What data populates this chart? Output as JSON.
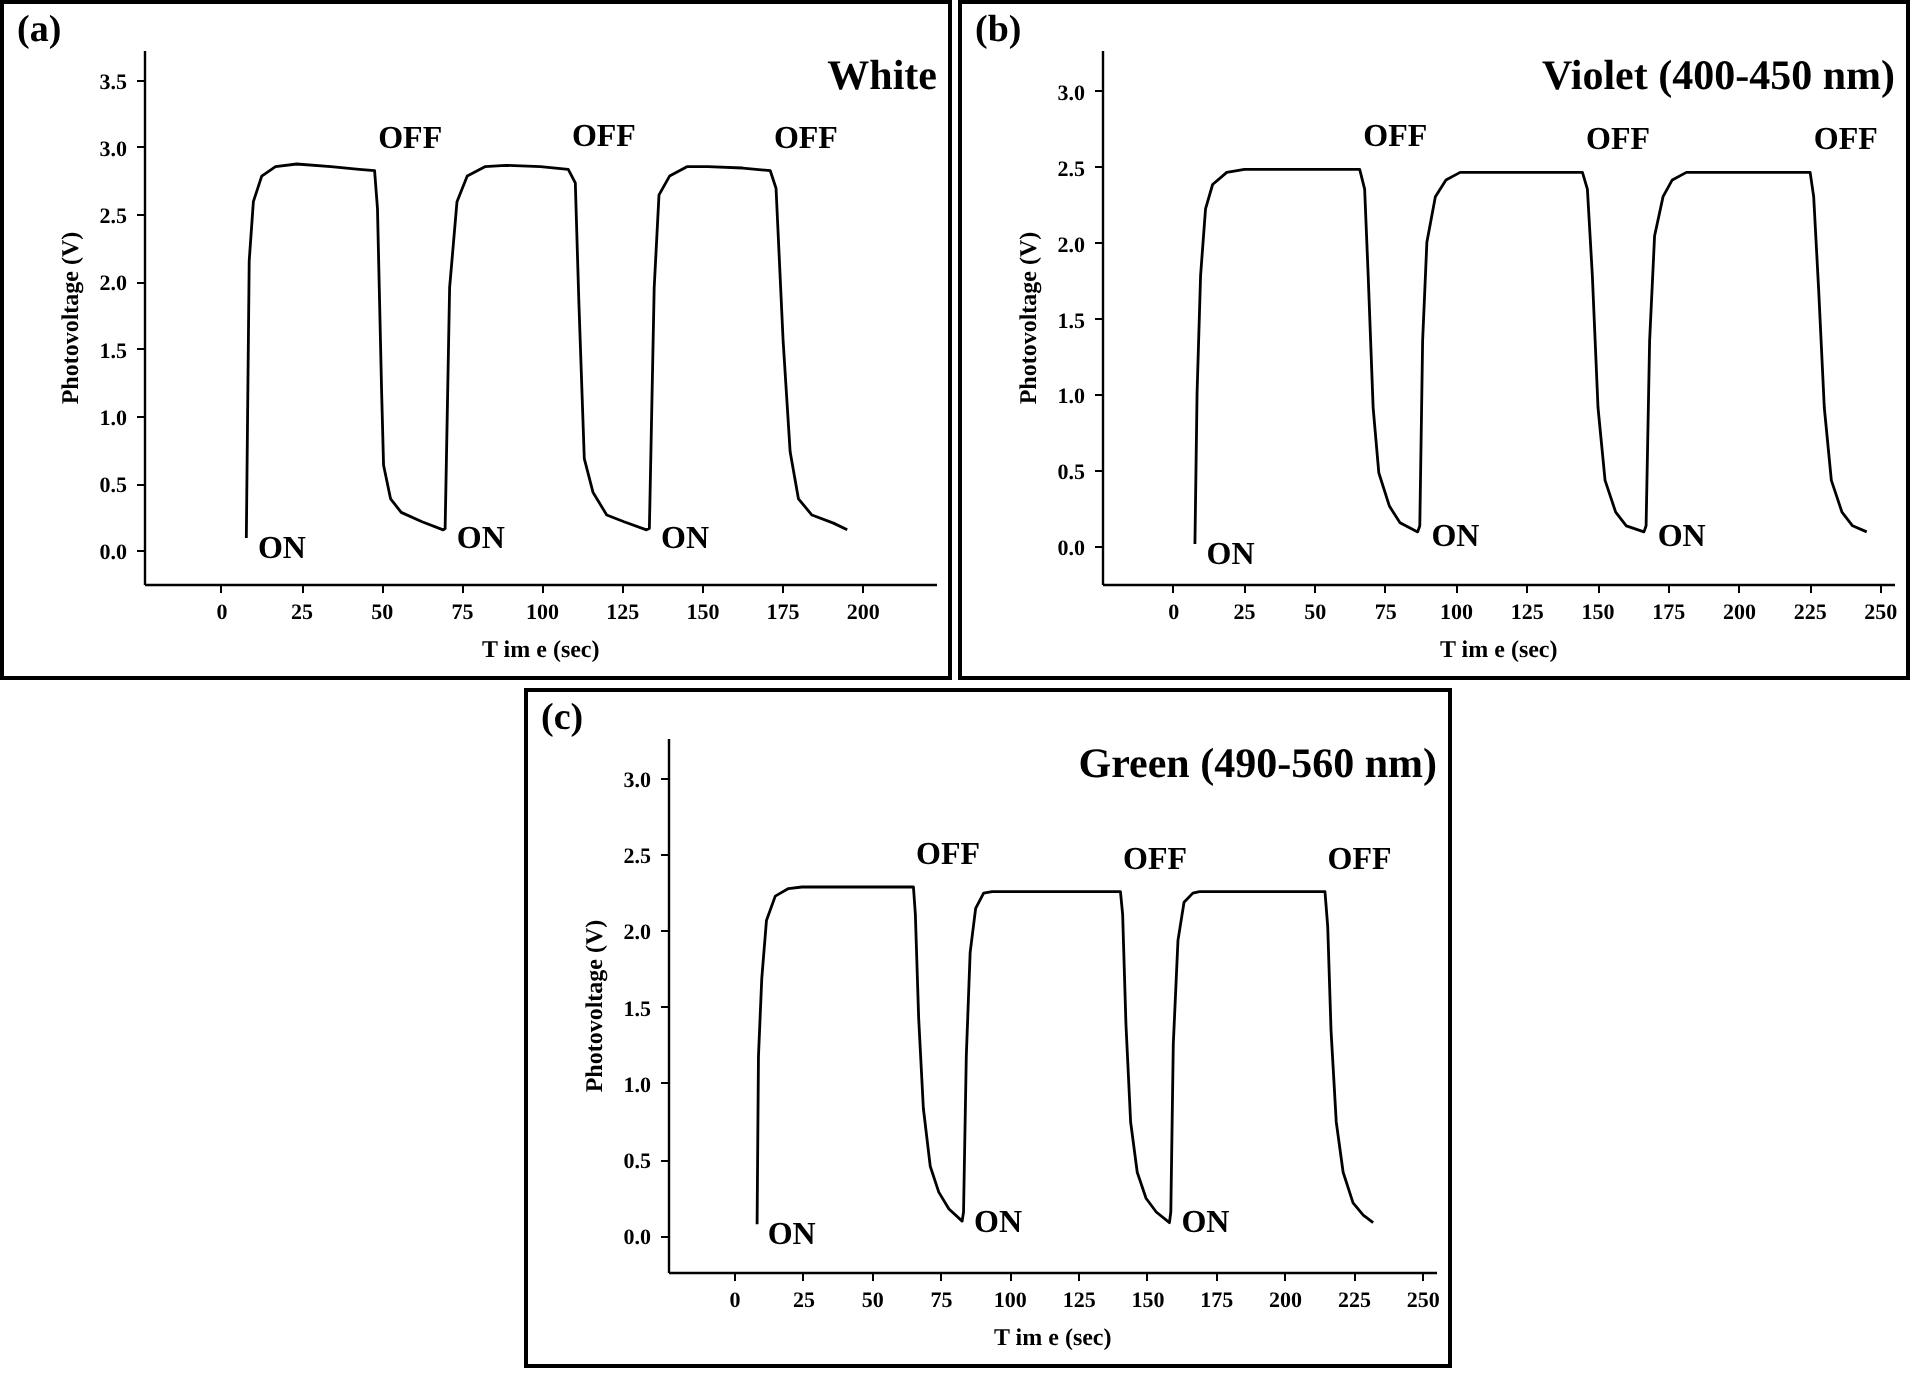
{
  "chart_data": [
    {
      "type": "line",
      "title": "White",
      "xlabel": "T im e (sec)",
      "ylabel": "Photovoltage (V)",
      "xlim": [
        -24,
        223
      ],
      "ylim": [
        -0.25,
        3.72
      ],
      "xticks": [
        0,
        25,
        50,
        75,
        100,
        125,
        150,
        175,
        200
      ],
      "yticks": [
        {
          "value": 0,
          "label": "0.0"
        },
        {
          "value": 0.5,
          "label": "0.5"
        },
        {
          "value": 1,
          "label": "1.0"
        },
        {
          "value": 1.5,
          "label": "1.5"
        },
        {
          "value": 2,
          "label": "2.0"
        },
        {
          "value": 2.5,
          "label": "2.5"
        },
        {
          "value": 3,
          "label": "3.0"
        },
        {
          "value": 3.5,
          "label": "3.5"
        }
      ],
      "series": [
        {
          "color": "#000000",
          "x": [
            7.6,
            8.5,
            9.8,
            12.4,
            16.7,
            23.3,
            34,
            42.8,
            47.6,
            48.5,
            49.8,
            50.4,
            52.6,
            55.9,
            62.4,
            69,
            69.6,
            71,
            73.3,
            76.5,
            82,
            88.5,
            99.3,
            108,
            110.2,
            111.3,
            113,
            115.7,
            120,
            125.4,
            132.4,
            133.3,
            134.8,
            136.3,
            139.6,
            145,
            151.5,
            162.4,
            171,
            172.8,
            175,
            177.2,
            179.8,
            184,
            190.7,
            195
          ],
          "values": [
            0.1,
            2.16,
            2.6,
            2.79,
            2.86,
            2.88,
            2.86,
            2.84,
            2.83,
            2.55,
            1.18,
            0.64,
            0.39,
            0.29,
            0.22,
            0.16,
            0.17,
            1.96,
            2.6,
            2.79,
            2.86,
            2.87,
            2.86,
            2.84,
            2.74,
            1.86,
            0.69,
            0.44,
            0.27,
            0.22,
            0.16,
            0.17,
            1.96,
            2.65,
            2.79,
            2.86,
            2.86,
            2.85,
            2.83,
            2.7,
            1.57,
            0.74,
            0.39,
            0.27,
            0.21,
            0.16
          ]
        }
      ],
      "annotations": [
        "(a)",
        "ON",
        "OFF",
        "ON",
        "OFF",
        "ON",
        "OFF"
      ]
    },
    {
      "type": "line",
      "title": "Violet (400-450 nm)",
      "xlabel": "T im e (sec)",
      "ylabel": "Photovoltage (V)",
      "xlim": [
        -25,
        255
      ],
      "ylim": [
        -0.25,
        3.27
      ],
      "xticks": [
        0,
        25,
        50,
        75,
        100,
        125,
        150,
        175,
        200,
        225,
        250
      ],
      "yticks": [
        {
          "value": 0,
          "label": "0.0"
        },
        {
          "value": 0.5,
          "label": "0.5"
        },
        {
          "value": 1,
          "label": "1.0"
        },
        {
          "value": 1.5,
          "label": "1.5"
        },
        {
          "value": 2,
          "label": "2.0"
        },
        {
          "value": 2.5,
          "label": "2.5"
        },
        {
          "value": 3,
          "label": "3.0"
        }
      ],
      "series": [
        {
          "color": "#000000",
          "x": [
            7.5,
            8.25,
            9.5,
            11.25,
            13.75,
            18.75,
            25,
            65.75,
            67.5,
            68.75,
            70.5,
            72.5,
            76.25,
            80,
            86.25,
            87,
            88,
            89.5,
            92.5,
            96.25,
            101.25,
            144.5,
            146.25,
            148,
            150,
            152.5,
            156.25,
            160,
            166.25,
            167,
            168.25,
            170,
            173,
            176.25,
            181.25,
            225,
            226.25,
            228,
            230,
            232.5,
            236.25,
            240,
            245
          ],
          "values": [
            0.02,
            1.01,
            1.79,
            2.23,
            2.39,
            2.47,
            2.49,
            2.49,
            2.36,
            1.79,
            0.92,
            0.49,
            0.27,
            0.16,
            0.1,
            0.14,
            1.36,
            2.01,
            2.31,
            2.42,
            2.47,
            2.47,
            2.36,
            1.79,
            0.92,
            0.44,
            0.23,
            0.14,
            0.1,
            0.14,
            1.36,
            2.05,
            2.31,
            2.42,
            2.47,
            2.47,
            2.31,
            1.7,
            0.92,
            0.44,
            0.23,
            0.14,
            0.1
          ]
        }
      ],
      "annotations": [
        "(b)",
        "ON",
        "OFF",
        "ON",
        "OFF",
        "ON",
        "OFF"
      ]
    },
    {
      "type": "line",
      "title": "Green (490-560 nm)",
      "xlabel": "T im e (sec)",
      "ylabel": "Photovoltage (V)",
      "xlim": [
        -24,
        255
      ],
      "ylim": [
        -0.24,
        3.26
      ],
      "xticks": [
        0,
        25,
        50,
        75,
        100,
        125,
        150,
        175,
        200,
        225,
        250
      ],
      "yticks": [
        {
          "value": 0,
          "label": "0.0"
        },
        {
          "value": 0.5,
          "label": "0.5"
        },
        {
          "value": 1,
          "label": "1.0"
        },
        {
          "value": 1.5,
          "label": "1.5"
        },
        {
          "value": 2,
          "label": "2.0"
        },
        {
          "value": 2.5,
          "label": "2.5"
        },
        {
          "value": 3,
          "label": "3.0"
        }
      ],
      "series": [
        {
          "color": "#000000",
          "x": [
            8,
            8.5,
            9.7,
            11.4,
            14.6,
            19.4,
            24.3,
            64.8,
            65.5,
            66.7,
            68.4,
            70.9,
            74,
            77.7,
            82.5,
            83,
            84,
            85.4,
            87.4,
            90.3,
            93.4,
            140,
            140.8,
            142,
            143.7,
            146.1,
            149.3,
            153,
            157.8,
            158.3,
            159.2,
            160.9,
            163.1,
            166.3,
            168.7,
            214.3,
            215.3,
            216.5,
            218.4,
            220.9,
            224.5,
            228.2,
            231.8
          ],
          "values": [
            0.08,
            1.18,
            1.69,
            2.07,
            2.23,
            2.28,
            2.29,
            2.29,
            2.11,
            1.43,
            0.84,
            0.46,
            0.29,
            0.18,
            0.1,
            0.16,
            1.18,
            1.86,
            2.15,
            2.25,
            2.26,
            2.26,
            2.11,
            1.39,
            0.75,
            0.42,
            0.25,
            0.16,
            0.09,
            0.16,
            1.26,
            1.94,
            2.19,
            2.25,
            2.26,
            2.26,
            2.03,
            1.35,
            0.75,
            0.42,
            0.22,
            0.14,
            0.09
          ]
        }
      ],
      "annotations": [
        "(c)",
        "ON",
        "OFF",
        "ON",
        "OFF",
        "ON",
        "OFF"
      ]
    }
  ]
}
